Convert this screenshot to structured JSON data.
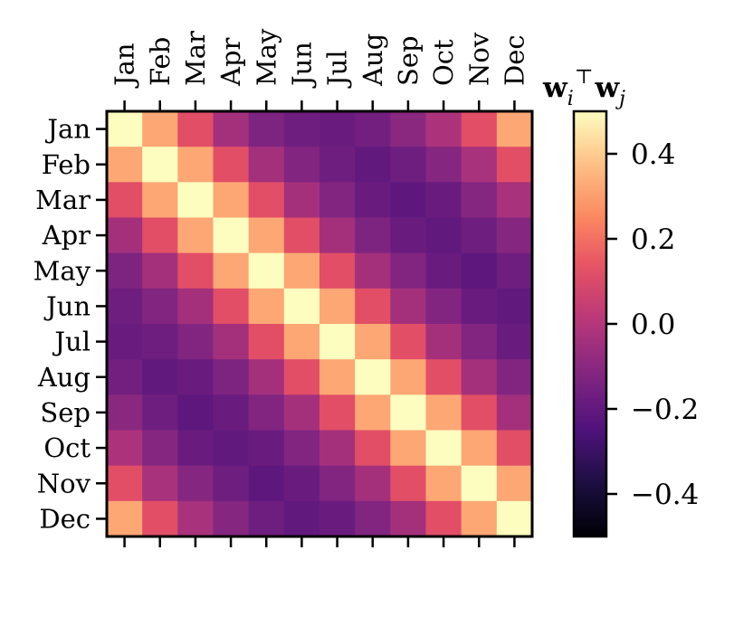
{
  "chart_data": {
    "type": "heatmap",
    "title": "",
    "xlabel": "",
    "ylabel": "",
    "colormap": "magma",
    "x_categories": [
      "Jan",
      "Feb",
      "Mar",
      "Apr",
      "May",
      "Jun",
      "Jul",
      "Aug",
      "Sep",
      "Oct",
      "Nov",
      "Dec"
    ],
    "y_categories": [
      "Jan",
      "Feb",
      "Mar",
      "Apr",
      "May",
      "Jun",
      "Jul",
      "Aug",
      "Sep",
      "Oct",
      "Nov",
      "Dec"
    ],
    "values": [
      [
        0.5,
        0.32,
        0.12,
        -0.04,
        -0.13,
        -0.17,
        -0.18,
        -0.16,
        -0.1,
        -0.02,
        0.12,
        0.32
      ],
      [
        0.32,
        0.5,
        0.32,
        0.12,
        -0.04,
        -0.12,
        -0.17,
        -0.2,
        -0.17,
        -0.11,
        -0.03,
        0.12
      ],
      [
        0.12,
        0.32,
        0.5,
        0.32,
        0.12,
        -0.04,
        -0.12,
        -0.18,
        -0.21,
        -0.18,
        -0.11,
        -0.03
      ],
      [
        -0.04,
        0.12,
        0.32,
        0.5,
        0.32,
        0.12,
        -0.04,
        -0.13,
        -0.18,
        -0.2,
        -0.17,
        -0.11
      ],
      [
        -0.13,
        -0.04,
        0.12,
        0.32,
        0.5,
        0.32,
        0.12,
        -0.04,
        -0.12,
        -0.18,
        -0.21,
        -0.17
      ],
      [
        -0.17,
        -0.12,
        -0.04,
        0.12,
        0.32,
        0.5,
        0.32,
        0.12,
        -0.04,
        -0.12,
        -0.18,
        -0.2
      ],
      [
        -0.18,
        -0.17,
        -0.12,
        -0.04,
        0.12,
        0.32,
        0.5,
        0.32,
        0.12,
        -0.04,
        -0.12,
        -0.18
      ],
      [
        -0.16,
        -0.2,
        -0.18,
        -0.13,
        -0.04,
        0.12,
        0.32,
        0.5,
        0.32,
        0.12,
        -0.04,
        -0.12
      ],
      [
        -0.1,
        -0.17,
        -0.21,
        -0.18,
        -0.12,
        -0.04,
        0.12,
        0.32,
        0.5,
        0.32,
        0.12,
        -0.04
      ],
      [
        -0.02,
        -0.11,
        -0.18,
        -0.2,
        -0.18,
        -0.12,
        -0.04,
        0.12,
        0.32,
        0.5,
        0.32,
        0.12
      ],
      [
        0.12,
        -0.03,
        -0.11,
        -0.17,
        -0.21,
        -0.18,
        -0.12,
        -0.04,
        0.12,
        0.32,
        0.5,
        0.32
      ],
      [
        0.32,
        0.12,
        -0.03,
        -0.11,
        -0.17,
        -0.2,
        -0.18,
        -0.12,
        -0.04,
        0.12,
        0.32,
        0.5
      ]
    ],
    "vmin": -0.5,
    "vmax": 0.5,
    "colorbar": {
      "label_parts": [
        "w",
        "i",
        "⊤",
        "w",
        "j"
      ],
      "ticks": [
        0.4,
        0.2,
        0.0,
        -0.2,
        -0.4
      ],
      "tick_labels": [
        "0.4",
        "0.2",
        "0.0",
        "−0.2",
        "−0.4"
      ]
    }
  }
}
